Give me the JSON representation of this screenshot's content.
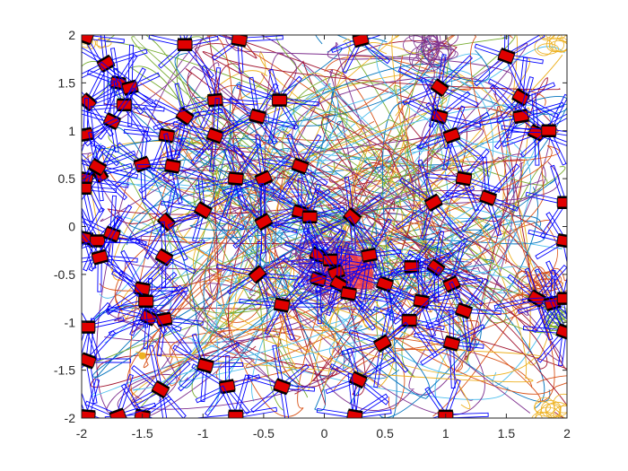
{
  "chart_data": {
    "type": "scatter",
    "title": "",
    "xlabel": "",
    "ylabel": "",
    "xlim": [
      -2,
      2
    ],
    "ylim": [
      -2,
      2
    ],
    "grid": false,
    "x_ticks": [
      -2,
      -1.5,
      -1,
      -0.5,
      0,
      0.5,
      1,
      1.5,
      2
    ],
    "y_ticks": [
      -2,
      -1.5,
      -1,
      -0.5,
      0,
      0.5,
      1,
      1.5,
      2
    ],
    "x_tick_labels": [
      "-2",
      "-1.5",
      "-1",
      "-0.5",
      "0",
      "0.5",
      "1",
      "1.5",
      "2"
    ],
    "y_tick_labels": [
      "-2",
      "-1.5",
      "-1",
      "-0.5",
      "0",
      "0.5",
      "1",
      "1.5",
      "2"
    ],
    "target_region": {
      "x": [
        0,
        0.4
      ],
      "y": [
        -0.65,
        -0.3
      ],
      "color": "#ff3b3b"
    },
    "trajectory_colors": [
      "#0072BD",
      "#D95319",
      "#EDB120",
      "#7E2F8E",
      "#77AC30",
      "#4DBEEE",
      "#A2142F"
    ],
    "robot_color": "#e00000",
    "spoke_color": "#0000ff",
    "robots": [
      {
        "x": -1.97,
        "y": 1.98,
        "a": 20
      },
      {
        "x": -1.8,
        "y": 1.7,
        "a": -30
      },
      {
        "x": -1.7,
        "y": 1.5,
        "a": 10
      },
      {
        "x": -1.95,
        "y": 1.3,
        "a": 40
      },
      {
        "x": -1.6,
        "y": 1.45,
        "a": -15
      },
      {
        "x": -1.65,
        "y": 1.27,
        "a": 0
      },
      {
        "x": -1.75,
        "y": 1.1,
        "a": 25
      },
      {
        "x": -1.97,
        "y": 0.96,
        "a": -10
      },
      {
        "x": -1.85,
        "y": 0.55,
        "a": 60
      },
      {
        "x": -1.97,
        "y": 0.5,
        "a": 10
      },
      {
        "x": -1.98,
        "y": 0.4,
        "a": 0
      },
      {
        "x": -1.87,
        "y": 0.62,
        "a": 30
      },
      {
        "x": -1.3,
        "y": 0.05,
        "a": 45
      },
      {
        "x": -1.5,
        "y": 0.65,
        "a": -20
      },
      {
        "x": -1.3,
        "y": 0.95,
        "a": 10
      },
      {
        "x": -1.15,
        "y": 1.15,
        "a": 35
      },
      {
        "x": -0.9,
        "y": 1.32,
        "a": -5
      },
      {
        "x": -0.9,
        "y": 0.95,
        "a": 20
      },
      {
        "x": -0.55,
        "y": 1.15,
        "a": 15
      },
      {
        "x": -0.37,
        "y": 1.32,
        "a": 0
      },
      {
        "x": -0.5,
        "y": 0.5,
        "a": -25
      },
      {
        "x": -0.73,
        "y": 0.5,
        "a": 5
      },
      {
        "x": -1.0,
        "y": 0.17,
        "a": 30
      },
      {
        "x": -1.25,
        "y": 0.63,
        "a": 10
      },
      {
        "x": -0.2,
        "y": 0.63,
        "a": 20
      },
      {
        "x": -0.5,
        "y": 0.05,
        "a": -30
      },
      {
        "x": -0.2,
        "y": 0.15,
        "a": 15
      },
      {
        "x": -0.12,
        "y": 0.1,
        "a": 0
      },
      {
        "x": 0.23,
        "y": 0.1,
        "a": 40
      },
      {
        "x": -1.97,
        "y": -0.12,
        "a": 10
      },
      {
        "x": -1.87,
        "y": -0.15,
        "a": 0
      },
      {
        "x": -1.75,
        "y": -0.08,
        "a": 20
      },
      {
        "x": -1.85,
        "y": -0.32,
        "a": -15
      },
      {
        "x": -1.32,
        "y": -0.32,
        "a": 30
      },
      {
        "x": -0.55,
        "y": -0.5,
        "a": -40
      },
      {
        "x": -0.35,
        "y": -0.82,
        "a": 10
      },
      {
        "x": -0.05,
        "y": -0.3,
        "a": 25
      },
      {
        "x": 0.05,
        "y": -0.35,
        "a": 0
      },
      {
        "x": -0.05,
        "y": -0.55,
        "a": 15
      },
      {
        "x": 0.1,
        "y": -0.48,
        "a": -20
      },
      {
        "x": 0.12,
        "y": -0.6,
        "a": 30
      },
      {
        "x": 0.2,
        "y": -0.7,
        "a": 10
      },
      {
        "x": 0.37,
        "y": -0.3,
        "a": -10
      },
      {
        "x": 0.5,
        "y": -0.6,
        "a": 20
      },
      {
        "x": 0.72,
        "y": -0.42,
        "a": 0
      },
      {
        "x": 0.92,
        "y": -0.43,
        "a": 35
      },
      {
        "x": 1.05,
        "y": -0.6,
        "a": -25
      },
      {
        "x": 0.8,
        "y": -0.78,
        "a": 10
      },
      {
        "x": 1.15,
        "y": -0.88,
        "a": 20
      },
      {
        "x": 0.7,
        "y": -0.98,
        "a": 0
      },
      {
        "x": 1.05,
        "y": -1.22,
        "a": 15
      },
      {
        "x": 0.48,
        "y": -1.22,
        "a": -30
      },
      {
        "x": 0.28,
        "y": -1.6,
        "a": 25
      },
      {
        "x": 1.0,
        "y": -1.98,
        "a": 0
      },
      {
        "x": 0.25,
        "y": -1.98,
        "a": 10
      },
      {
        "x": -0.35,
        "y": -1.67,
        "a": 20
      },
      {
        "x": -0.8,
        "y": -1.67,
        "a": -10
      },
      {
        "x": -0.98,
        "y": -1.45,
        "a": 15
      },
      {
        "x": -1.35,
        "y": -1.7,
        "a": 30
      },
      {
        "x": -0.73,
        "y": -1.98,
        "a": 0
      },
      {
        "x": -1.5,
        "y": -1.98,
        "a": 10
      },
      {
        "x": -1.7,
        "y": -1.98,
        "a": -20
      },
      {
        "x": -1.95,
        "y": -1.98,
        "a": 5
      },
      {
        "x": -1.95,
        "y": -1.4,
        "a": 20
      },
      {
        "x": -1.95,
        "y": -1.05,
        "a": 0
      },
      {
        "x": -1.45,
        "y": -0.95,
        "a": 25
      },
      {
        "x": -1.32,
        "y": -0.97,
        "a": -10
      },
      {
        "x": -1.5,
        "y": -0.65,
        "a": 10
      },
      {
        "x": -1.47,
        "y": -0.78,
        "a": 0
      },
      {
        "x": -1.15,
        "y": 1.9,
        "a": 0
      },
      {
        "x": -0.7,
        "y": 1.95,
        "a": 10
      },
      {
        "x": 0.3,
        "y": 1.95,
        "a": -15
      },
      {
        "x": 1.5,
        "y": 1.78,
        "a": 20
      },
      {
        "x": 1.62,
        "y": 1.35,
        "a": 30
      },
      {
        "x": 1.62,
        "y": 1.15,
        "a": -10
      },
      {
        "x": 1.75,
        "y": 0.98,
        "a": 25
      },
      {
        "x": 1.85,
        "y": 1.0,
        "a": 0
      },
      {
        "x": 0.95,
        "y": 1.15,
        "a": 15
      },
      {
        "x": 1.05,
        "y": 0.95,
        "a": -20
      },
      {
        "x": 0.95,
        "y": 1.45,
        "a": 35
      },
      {
        "x": 1.15,
        "y": 0.5,
        "a": 10
      },
      {
        "x": 0.9,
        "y": 0.25,
        "a": -30
      },
      {
        "x": 1.35,
        "y": 0.3,
        "a": 20
      },
      {
        "x": 1.98,
        "y": 0.25,
        "a": 0
      },
      {
        "x": 1.98,
        "y": -0.15,
        "a": 10
      },
      {
        "x": 1.75,
        "y": -0.75,
        "a": 30
      },
      {
        "x": 1.88,
        "y": -0.8,
        "a": -15
      },
      {
        "x": 1.98,
        "y": -0.75,
        "a": 0
      },
      {
        "x": 1.98,
        "y": -1.1,
        "a": 20
      }
    ]
  }
}
